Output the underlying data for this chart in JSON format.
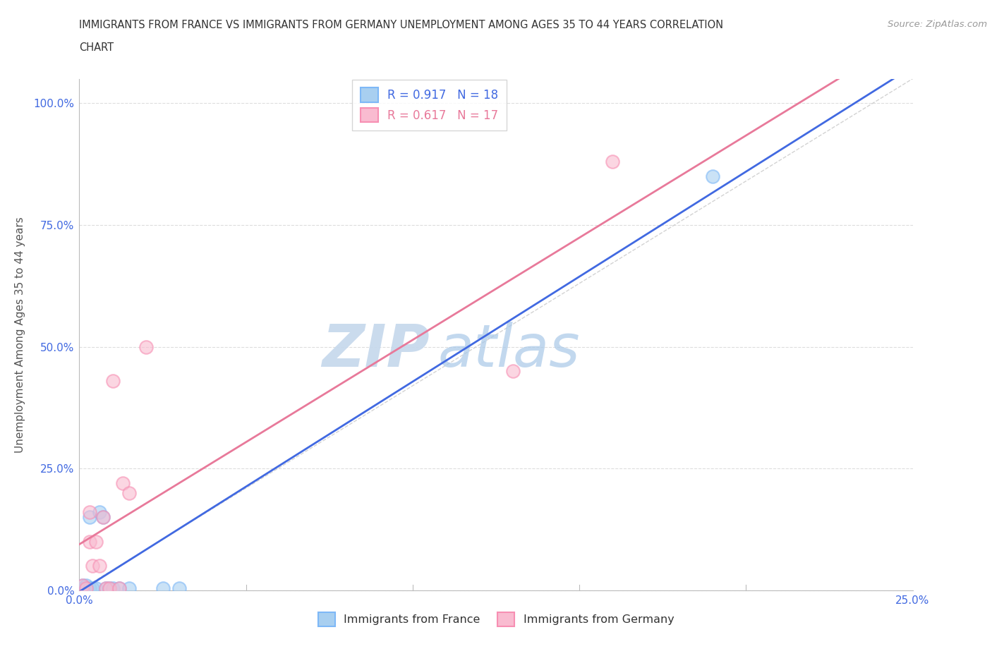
{
  "title_line1": "IMMIGRANTS FROM FRANCE VS IMMIGRANTS FROM GERMANY UNEMPLOYMENT AMONG AGES 35 TO 44 YEARS CORRELATION",
  "title_line2": "CHART",
  "source": "Source: ZipAtlas.com",
  "ylabel": "Unemployment Among Ages 35 to 44 years",
  "xlim": [
    0.0,
    0.25
  ],
  "ylim": [
    0.0,
    1.05
  ],
  "yticks": [
    0.0,
    0.25,
    0.5,
    0.75,
    1.0
  ],
  "xticks": [
    0.0,
    0.05,
    0.1,
    0.15,
    0.2,
    0.25
  ],
  "xticklabels": [
    "0.0%",
    "",
    "",
    "",
    "",
    "25.0%"
  ],
  "yticklabels": [
    "0.0%",
    "25.0%",
    "50.0%",
    "75.0%",
    "100.0%"
  ],
  "france_color_fill": "#A8CFF0",
  "france_color_edge": "#7EB8F7",
  "germany_color_fill": "#F9BBD0",
  "germany_color_edge": "#F78FB3",
  "france_line_color": "#4169E1",
  "germany_line_color": "#E8799A",
  "diagonal_color": "#C8C8C8",
  "france_R": 0.917,
  "france_N": 18,
  "germany_R": 0.617,
  "germany_N": 17,
  "france_scatter_x": [
    0.001,
    0.001,
    0.002,
    0.002,
    0.003,
    0.003,
    0.004,
    0.005,
    0.006,
    0.007,
    0.008,
    0.009,
    0.01,
    0.012,
    0.015,
    0.025,
    0.03,
    0.19
  ],
  "france_scatter_y": [
    0.005,
    0.01,
    0.005,
    0.01,
    0.005,
    0.15,
    0.005,
    0.005,
    0.16,
    0.15,
    0.005,
    0.005,
    0.005,
    0.005,
    0.005,
    0.005,
    0.005,
    0.85
  ],
  "germany_scatter_x": [
    0.001,
    0.002,
    0.003,
    0.003,
    0.004,
    0.005,
    0.006,
    0.007,
    0.008,
    0.009,
    0.01,
    0.012,
    0.013,
    0.015,
    0.02,
    0.13,
    0.16
  ],
  "germany_scatter_y": [
    0.01,
    0.005,
    0.1,
    0.16,
    0.05,
    0.1,
    0.05,
    0.15,
    0.005,
    0.005,
    0.43,
    0.005,
    0.22,
    0.2,
    0.5,
    0.45,
    0.88
  ],
  "watermark_zip": "ZIP",
  "watermark_atlas": "atlas",
  "background_color": "#FFFFFF",
  "grid_color": "#DDDDDD",
  "tick_color": "#4169E1",
  "axis_color": "#BBBBBB",
  "ylabel_color": "#555555",
  "title_color": "#333333",
  "source_color": "#999999"
}
